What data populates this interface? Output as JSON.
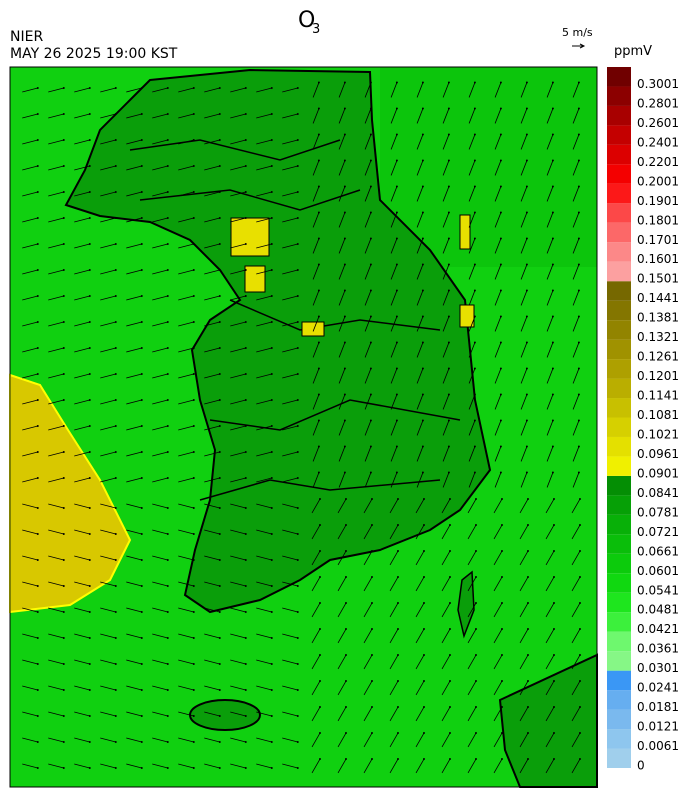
{
  "header": {
    "agency": "NIER",
    "title": "O",
    "title_sub": "3",
    "datetime": "MAY 26 2025 19:00 KST"
  },
  "wind_scale": {
    "label": "5 m/s"
  },
  "colorbar": {
    "unit": "ppmV",
    "ticks": [
      0,
      0.0061,
      0.0121,
      0.0181,
      0.0241,
      0.0301,
      0.0361,
      0.0421,
      0.0481,
      0.0541,
      0.0601,
      0.0661,
      0.0721,
      0.0781,
      0.0841,
      0.0901,
      0.0961,
      0.1021,
      0.1081,
      0.1141,
      0.1201,
      0.1261,
      0.1321,
      0.1381,
      0.1441,
      0.1501,
      0.1601,
      0.1701,
      0.1801,
      0.1901,
      0.2001,
      0.2201,
      0.2401,
      0.2601,
      0.2801,
      0.3001
    ],
    "colors": [
      "#a0cfec",
      "#8ec6ee",
      "#7ab9ee",
      "#66aef0",
      "#3a97f5",
      "#86f786",
      "#6ef86e",
      "#3cf03c",
      "#1ee61e",
      "#10d810",
      "#0ccb0c",
      "#0abe0a",
      "#08b008",
      "#06a006",
      "#048e04",
      "#f0f000",
      "#e4e000",
      "#d6d000",
      "#c8c000",
      "#baae00",
      "#aea000",
      "#a09200",
      "#928400",
      "#847600",
      "#766800",
      "#fca0a0",
      "#fc8888",
      "#fc6868",
      "#fc4848",
      "#fc1818",
      "#f40000",
      "#dc0000",
      "#c40000",
      "#a80000",
      "#8c0000",
      "#700000"
    ]
  }
}
